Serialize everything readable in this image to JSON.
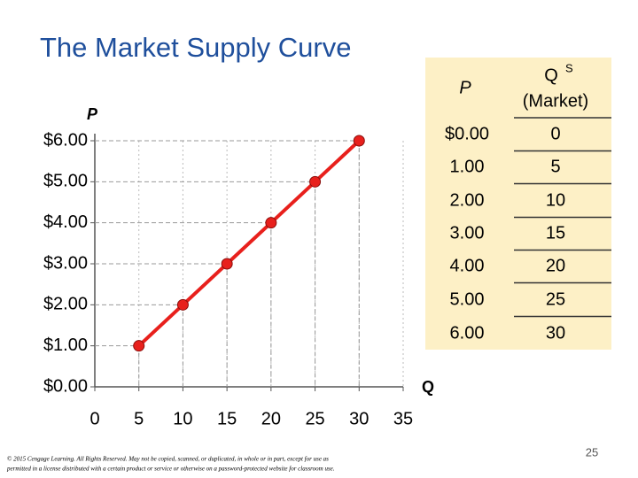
{
  "chart_data": {
    "type": "line",
    "title": "The Market Supply Curve",
    "x_label": "Q",
    "y_label": "P",
    "x": [
      5,
      10,
      15,
      20,
      25,
      30
    ],
    "series": [
      {
        "color": "#e8201c",
        "values": [
          1,
          2,
          3,
          4,
          5,
          6
        ]
      }
    ],
    "xlim": [
      0,
      35
    ],
    "xticks": [
      0,
      5,
      10,
      15,
      20,
      25,
      30,
      35
    ],
    "ylim": [
      0,
      6
    ],
    "yticks": [
      {
        "value": 0,
        "label": "$0.00"
      },
      {
        "value": 1,
        "label": "$1.00"
      },
      {
        "value": 2,
        "label": "$2.00"
      },
      {
        "value": 3,
        "label": "$3.00"
      },
      {
        "value": 4,
        "label": "$4.00"
      },
      {
        "value": 5,
        "label": "$5.00"
      },
      {
        "value": 6,
        "label": "$6.00"
      }
    ],
    "grid": true
  },
  "table": {
    "header_p": "P",
    "header_q": "Q",
    "header_q_sup": "S",
    "header_q_sub": "(Market)",
    "rows": [
      [
        "$0.00",
        "0"
      ],
      [
        "1.00",
        "5"
      ],
      [
        "2.00",
        "10"
      ],
      [
        "3.00",
        "15"
      ],
      [
        "4.00",
        "20"
      ],
      [
        "5.00",
        "25"
      ],
      [
        "6.00",
        "30"
      ]
    ]
  },
  "footer": {
    "lines": [
      "© 2015 Cengage Learning. All Rights Reserved. May not be copied, scanned, or duplicated, in whole or in part, except for use as",
      "permitted in a license distributed with a certain product or service or otherwise on a password-protected website for classroom use."
    ],
    "page_number": "25"
  }
}
